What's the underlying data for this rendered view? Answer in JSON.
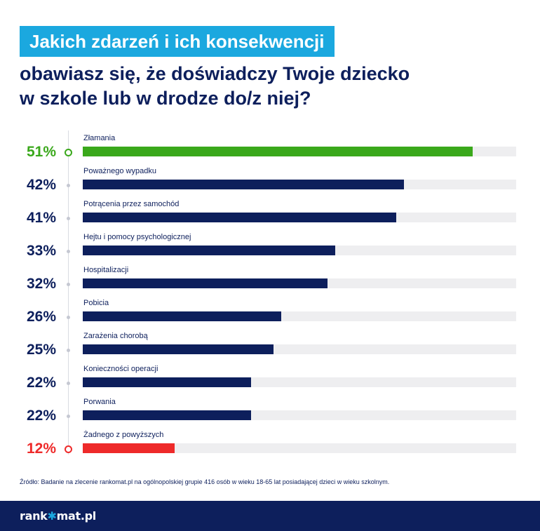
{
  "header": {
    "title": "Jakich zdarzeń i ich konsekwencji",
    "subtitle_line1": "obawiasz się, że doświadczy Twoje dziecko",
    "subtitle_line2": "w szkole lub w drodze do/z niej?"
  },
  "colors": {
    "title_bg": "#1ba8df",
    "primary": "#0d1f5c",
    "highlight_high": "#3aa81b",
    "highlight_low": "#ee2a2a",
    "track": "#eeeef0"
  },
  "chart_data": {
    "type": "bar",
    "orientation": "horizontal",
    "categories": [
      "Złamania",
      "Poważnego wypadku",
      "Potrącenia przez samochód",
      "Hejtu i pomocy psychologicznej",
      "Hospitalizacji",
      "Pobicia",
      "Zarażenia chorobą",
      "Konieczności operacji",
      "Porwania",
      "Żadnego z powyższych"
    ],
    "values": [
      51,
      42,
      41,
      33,
      32,
      26,
      25,
      22,
      22,
      12
    ],
    "value_labels": [
      "51%",
      "42%",
      "41%",
      "33%",
      "32%",
      "26%",
      "25%",
      "22%",
      "22%",
      "12%"
    ],
    "bar_colors": [
      "#3aa81b",
      "#0d1f5c",
      "#0d1f5c",
      "#0d1f5c",
      "#0d1f5c",
      "#0d1f5c",
      "#0d1f5c",
      "#0d1f5c",
      "#0d1f5c",
      "#ee2a2a"
    ],
    "highlighted": [
      true,
      false,
      false,
      false,
      false,
      false,
      false,
      false,
      false,
      true
    ],
    "xlim": [
      0,
      56.7
    ],
    "grid": false,
    "legend": "none"
  },
  "footer": {
    "source": "Źródło: Badanie na zlecenie rankomat.pl na ogólnopolskiej grupie 416 osób w wieku 18-65 lat posiadającej dzieci w wieku szkolnym.",
    "logo_left": "rank",
    "logo_star": "✱",
    "logo_right": "mat.pl"
  }
}
